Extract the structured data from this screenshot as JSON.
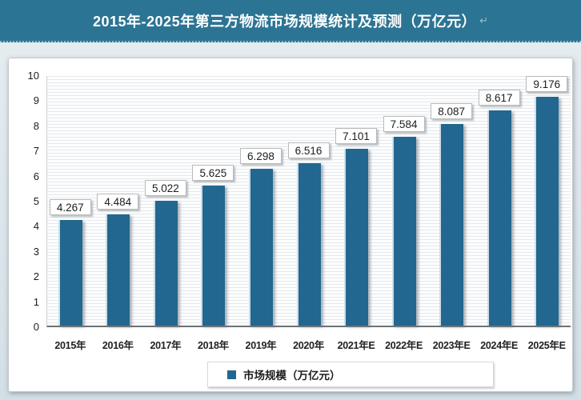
{
  "header": {
    "title": "2015年-2025年第三方物流市场规模统计及预测（万亿元）",
    "return_mark": "↵"
  },
  "chart_data": {
    "type": "bar",
    "title": "2015年-2025年第三方物流市场规模统计及预测（万亿元）",
    "categories": [
      "2015年",
      "2016年",
      "2017年",
      "2018年",
      "2019年",
      "2020年",
      "2021年E",
      "2022年E",
      "2023年E",
      "2024年E",
      "2025年E"
    ],
    "series": [
      {
        "name": "市场规模（万亿元）",
        "values": [
          4.267,
          4.484,
          5.022,
          5.625,
          6.298,
          6.516,
          7.101,
          7.584,
          8.087,
          8.617,
          9.176
        ]
      }
    ],
    "data_labels": [
      "4.267",
      "4.484",
      "5.022",
      "5.625",
      "6.298",
      "6.516",
      "7.101",
      "7.584",
      "8.087",
      "8.617",
      "9.176"
    ],
    "xlabel": "",
    "ylabel": "",
    "ylim": [
      0,
      10
    ],
    "yticks": [
      0,
      1,
      2,
      3,
      4,
      5,
      6,
      7,
      8,
      9,
      10
    ],
    "grid": true,
    "legend_position": "bottom"
  },
  "legend": {
    "label": "市场规模（万亿元）"
  },
  "colors": {
    "header_bg": "#2c7493",
    "bar": "#21678f",
    "page_bg": "#dbe5eb",
    "panel_bg": "#ffffff",
    "grid_line": "#e4eaee"
  }
}
